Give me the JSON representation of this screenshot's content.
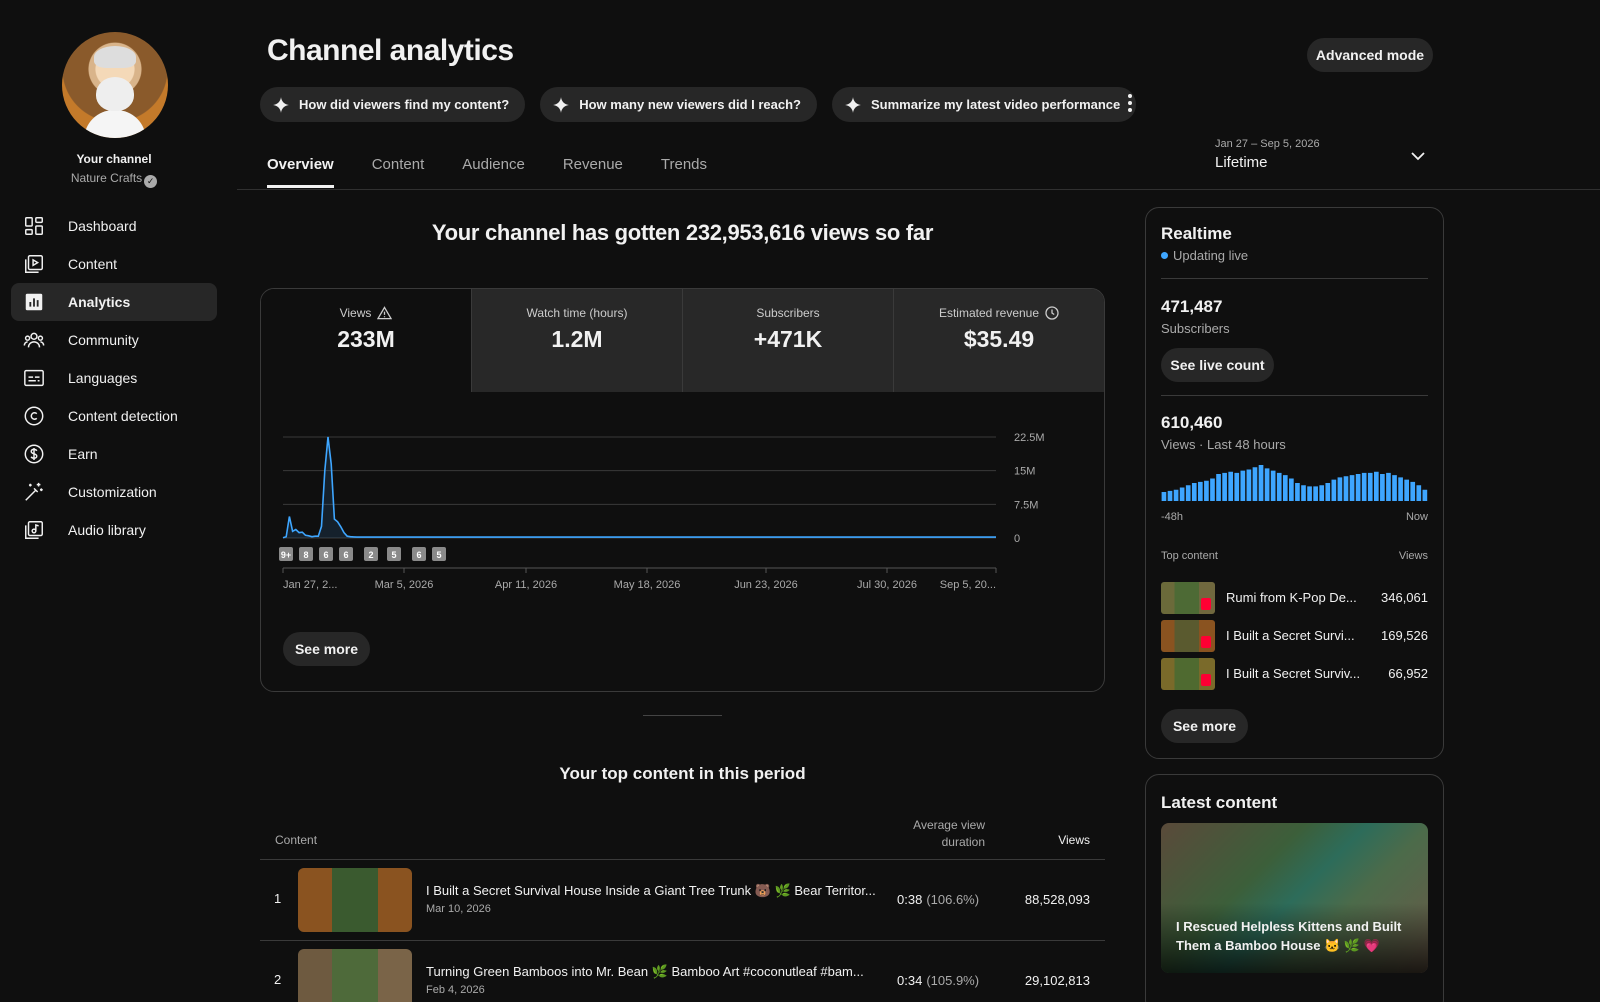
{
  "channel": {
    "label": "Your channel",
    "name": "Nature Crafts",
    "verified_icon": "check-icon"
  },
  "nav": [
    {
      "label": "Dashboard",
      "icon": "dashboard-icon"
    },
    {
      "label": "Content",
      "icon": "content-icon"
    },
    {
      "label": "Analytics",
      "icon": "analytics-icon",
      "active": true
    },
    {
      "label": "Community",
      "icon": "community-icon"
    },
    {
      "label": "Languages",
      "icon": "languages-icon"
    },
    {
      "label": "Content detection",
      "icon": "copyright-icon"
    },
    {
      "label": "Earn",
      "icon": "dollar-icon"
    },
    {
      "label": "Customization",
      "icon": "magic-wand-icon"
    },
    {
      "label": "Audio library",
      "icon": "audio-library-icon"
    }
  ],
  "header": {
    "title": "Channel analytics",
    "advanced_mode": "Advanced mode",
    "chips": [
      "How did viewers find my content?",
      "How many new viewers did I reach?",
      "Summarize my latest video performance"
    ],
    "date_range": "Jan 27 – Sep 5, 2026",
    "period": "Lifetime"
  },
  "tabs": [
    "Overview",
    "Content",
    "Audience",
    "Revenue",
    "Trends"
  ],
  "overview": {
    "headline": "Your channel has gotten 232,953,616 views so far",
    "metrics": [
      {
        "label": "Views",
        "value": "233M",
        "icon": "warning-icon"
      },
      {
        "label": "Watch time (hours)",
        "value": "1.2M"
      },
      {
        "label": "Subscribers",
        "value": "+471K"
      },
      {
        "label": "Estimated revenue",
        "value": "$35.49",
        "icon": "clock-icon"
      }
    ],
    "see_more": "See more"
  },
  "chart_data": {
    "type": "area",
    "series": [
      {
        "values": [
          0.05,
          0.3,
          4.8,
          1.5,
          1.9,
          1.2,
          1.3,
          0.6,
          0.5,
          0.3,
          0.4,
          0.4,
          2.6,
          15.0,
          22.5,
          16.5,
          4.2,
          3.6,
          2.5,
          1.2,
          0.4,
          0.3,
          0.25,
          0.2,
          0.2,
          0.2,
          0.2,
          0.2,
          0.2,
          0.2,
          0.2,
          0.2,
          0.2,
          0.2,
          0.2,
          0.2,
          0.2,
          0.2,
          0.2,
          0.2,
          0.2,
          0.2,
          0.2,
          0.2,
          0.2,
          0.2,
          0.2,
          0.2,
          0.2,
          0.2,
          0.2,
          0.2,
          0.2,
          0.2,
          0.2,
          0.2,
          0.2,
          0.2,
          0.2,
          0.2,
          0.2,
          0.2,
          0.2,
          0.2,
          0.2,
          0.2,
          0.2,
          0.2,
          0.2,
          0.2,
          0.2,
          0.2,
          0.2,
          0.2,
          0.2,
          0.2,
          0.2,
          0.2,
          0.2,
          0.2,
          0.2,
          0.2,
          0.2,
          0.2,
          0.2,
          0.2,
          0.2,
          0.2,
          0.2,
          0.2,
          0.2,
          0.2,
          0.2,
          0.2,
          0.2,
          0.2,
          0.2,
          0.2,
          0.2,
          0.2,
          0.2,
          0.2,
          0.2,
          0.2,
          0.2,
          0.2,
          0.2,
          0.2,
          0.2,
          0.2,
          0.2,
          0.2,
          0.2,
          0.2,
          0.2,
          0.2,
          0.2,
          0.2,
          0.2,
          0.2,
          0.2,
          0.2,
          0.2,
          0.2,
          0.2,
          0.2,
          0.2,
          0.2,
          0.2,
          0.2,
          0.2,
          0.2,
          0.2,
          0.2,
          0.2,
          0.2,
          0.2,
          0.2,
          0.2,
          0.2,
          0.2,
          0.2,
          0.2,
          0.2,
          0.2,
          0.2,
          0.2,
          0.2,
          0.2,
          0.2,
          0.2,
          0.2,
          0.2,
          0.2,
          0.2,
          0.2,
          0.2,
          0.2,
          0.2,
          0.2,
          0.2,
          0.2,
          0.2,
          0.2,
          0.2,
          0.2,
          0.2,
          0.2,
          0.2,
          0.2,
          0.2,
          0.2,
          0.2,
          0.2,
          0.2,
          0.2,
          0.2,
          0.2,
          0.2,
          0.2,
          0.2,
          0.2,
          0.2,
          0.2,
          0.2,
          0.2,
          0.2,
          0.2,
          0.2,
          0.2,
          0.2,
          0.2,
          0.2,
          0.2,
          0.2,
          0.2,
          0.2,
          0.2,
          0.2,
          0.2,
          0.2,
          0.2,
          0.2,
          0.2,
          0.2,
          0.2,
          0.2,
          0.2,
          0.2,
          0.2,
          0.2,
          0.2,
          0.2,
          0.2,
          0.2,
          0.2,
          0.2,
          0.2,
          0.2,
          0.2,
          0.2,
          0.2,
          0.2
        ]
      }
    ],
    "x_tick_labels": [
      "Jan 27, 2...",
      "Mar 5, 2026",
      "Apr 11, 2026",
      "May 18, 2026",
      "Jun 23, 2026",
      "Jul 30, 2026",
      "Sep 5, 20..."
    ],
    "y_tick_labels": [
      "22.5M",
      "15M",
      "7.5M",
      "0"
    ],
    "ylim": [
      0,
      22.5
    ],
    "unit": "M",
    "grid": true,
    "markers": [
      "9+",
      "8",
      "6",
      "6",
      "2",
      "5",
      "6",
      "5"
    ],
    "color": "#3ea6ff"
  },
  "top_content": {
    "title": "Your top content in this period",
    "col_content": "Content",
    "col_avd": "Average view duration",
    "col_views": "Views",
    "rows": [
      {
        "rank": "1",
        "title": "I Built a Secret Survival House Inside a Giant Tree Trunk 🐻 🌿 Bear Territor...",
        "date": "Mar 10, 2026",
        "avd": "0:38",
        "avd_pct": "(106.6%)",
        "views": "88,528,093"
      },
      {
        "rank": "2",
        "title": "Turning Green Bamboos into Mr. Bean 🌿 Bamboo Art #coconutleaf #bam...",
        "date": "Feb 4, 2026",
        "avd": "0:34",
        "avd_pct": "(105.9%)",
        "views": "29,102,813"
      }
    ]
  },
  "realtime": {
    "title": "Realtime",
    "live": "Updating live",
    "subscribers_value": "471,487",
    "subscribers_label": "Subscribers",
    "live_count_btn": "See live count",
    "views_value": "610,460",
    "views_label": "Views · Last 48 hours",
    "hourly_views": [
      8,
      9,
      10,
      12,
      14,
      16,
      17,
      18,
      20,
      24,
      25,
      26,
      25,
      27,
      28,
      30,
      32,
      29,
      27,
      25,
      23,
      20,
      16,
      14,
      13,
      13,
      14,
      16,
      19,
      21,
      22,
      23,
      24,
      25,
      25,
      26,
      24,
      25,
      23,
      21,
      19,
      17,
      14,
      10
    ],
    "axis_left": "-48h",
    "axis_right": "Now",
    "top_content_label": "Top content",
    "views_col": "Views",
    "items": [
      {
        "title": "Rumi from K-Pop De...",
        "views": "346,061"
      },
      {
        "title": "I Built a Secret Survi...",
        "views": "169,526"
      },
      {
        "title": "I Built a Secret Surviv...",
        "views": "66,952"
      }
    ],
    "see_more": "See more"
  },
  "latest": {
    "title": "Latest content",
    "video_title": "I Rescued Helpless Kittens and Built Them a Bamboo House 🐱 🌿 💗"
  }
}
